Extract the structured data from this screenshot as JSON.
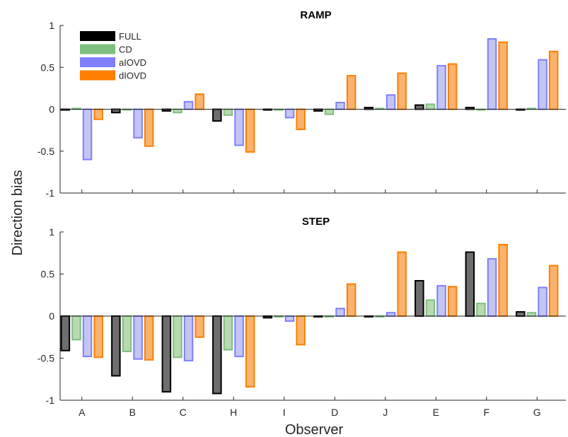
{
  "chart_data": {
    "type": "bar",
    "xlabel": "Observer",
    "ylabel": "Direction bias",
    "categories": [
      "A",
      "B",
      "C",
      "H",
      "I",
      "D",
      "J",
      "E",
      "F",
      "G"
    ],
    "ylim": [
      -1,
      1
    ],
    "yticks": [
      -1,
      -0.5,
      0,
      0.5,
      1
    ],
    "ytick_labels": [
      "-1",
      "-0.5",
      "0",
      "0.5",
      "1"
    ],
    "legend": {
      "placement": "top-left",
      "panel": 0
    },
    "series_style": [
      {
        "name": "FULL",
        "fill": "#6e6e6e",
        "stroke": "#000000",
        "legend_fill": "#000000"
      },
      {
        "name": "CD",
        "fill": "#b9d9b0",
        "stroke": "#7dbf7d",
        "legend_fill": "#7dbf7d"
      },
      {
        "name": "aIOVD",
        "fill": "#c4c6f2",
        "stroke": "#7f7fff",
        "legend_fill": "#7f7fff"
      },
      {
        "name": "dIOVD",
        "fill": "#f8b36e",
        "stroke": "#ff7f00",
        "legend_fill": "#ff7f00"
      }
    ],
    "panels": [
      {
        "title": "RAMP",
        "series": [
          {
            "name": "FULL",
            "values": [
              0.0,
              -0.04,
              -0.02,
              -0.14,
              0.0,
              -0.02,
              0.02,
              0.05,
              0.02,
              0.0
            ]
          },
          {
            "name": "CD",
            "values": [
              0.01,
              0.0,
              -0.04,
              -0.07,
              -0.01,
              -0.06,
              0.01,
              0.06,
              0.0,
              0.01
            ]
          },
          {
            "name": "aIOVD",
            "values": [
              -0.6,
              -0.34,
              0.09,
              -0.43,
              -0.1,
              0.08,
              0.17,
              0.52,
              0.84,
              0.59
            ]
          },
          {
            "name": "dIOVD",
            "values": [
              -0.12,
              -0.44,
              0.18,
              -0.51,
              -0.24,
              0.4,
              0.43,
              0.54,
              0.8,
              0.69
            ]
          }
        ]
      },
      {
        "title": "STEP",
        "series": [
          {
            "name": "FULL",
            "values": [
              -0.41,
              -0.71,
              -0.9,
              -0.92,
              -0.02,
              0.0,
              0.0,
              0.42,
              0.76,
              0.05
            ]
          },
          {
            "name": "CD",
            "values": [
              -0.28,
              -0.42,
              -0.49,
              -0.4,
              0.0,
              0.0,
              0.0,
              0.19,
              0.15,
              0.04
            ]
          },
          {
            "name": "aIOVD",
            "values": [
              -0.48,
              -0.51,
              -0.53,
              -0.48,
              -0.06,
              0.09,
              0.04,
              0.36,
              0.68,
              0.34
            ]
          },
          {
            "name": "dIOVD",
            "values": [
              -0.49,
              -0.52,
              -0.25,
              -0.84,
              -0.34,
              0.38,
              0.76,
              0.35,
              0.85,
              0.6
            ]
          }
        ]
      }
    ]
  }
}
